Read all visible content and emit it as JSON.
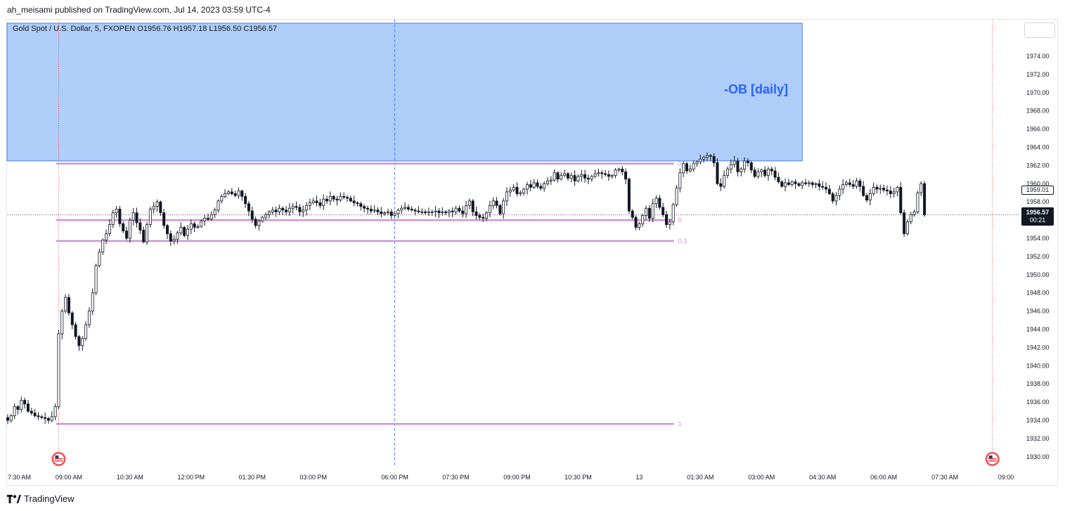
{
  "header": {
    "published": "ah_meisami published on TradingView.com, Jul 14, 2023 03:59 UTC-4"
  },
  "footer": {
    "brand": "TradingView"
  },
  "icons": {
    "brand_logo": "tradingview-logo-icon",
    "event_flags": "us-flag-icon"
  },
  "colors": {
    "order_block_fill": "#aecdf8",
    "order_block_border": "#2962ff",
    "order_block_label": "#2962ff",
    "fib_lines": "#ce93d8",
    "candle": "#131722",
    "dashed_vertical": "#2962ff",
    "red_vertical": "#e53935"
  },
  "chart_data": {
    "type": "candlestick",
    "symbol_line": "Gold Spot / U.S. Dollar, 5, FXOPEN  O1956.76  H1957.18  L1956.50  C1956.57",
    "ohlc_last": {
      "open": 1956.76,
      "high": 1957.18,
      "low": 1956.5,
      "close": 1956.57
    },
    "y_axis": {
      "range": [
        1928.5,
        1976
      ],
      "ticks": [
        "1930.00",
        "1932.00",
        "1934.00",
        "1936.00",
        "1938.00",
        "1940.00",
        "1942.00",
        "1944.00",
        "1946.00",
        "1948.00",
        "1950.00",
        "1952.00",
        "1954.00",
        "1956.00",
        "1958.00",
        "1960.00",
        "1962.00",
        "1964.00",
        "1966.00",
        "1968.00",
        "1970.00",
        "1972.00",
        "1974.00"
      ],
      "tick_values": [
        1930,
        1932,
        1934,
        1936,
        1938,
        1940,
        1942,
        1944,
        1946,
        1948,
        1950,
        1952,
        1954,
        1956,
        1958,
        1960,
        1962,
        1964,
        1966,
        1968,
        1970,
        1972,
        1974
      ]
    },
    "x_axis": {
      "ticks": [
        "7:30 AM",
        "09:00 AM",
        "10:30 AM",
        "12:00 PM",
        "01:30 PM",
        "03:00 PM",
        "06:00 PM",
        "07:30 PM",
        "09:00 PM",
        "10:30 PM",
        "13",
        "01:30 AM",
        "03:00 AM",
        "04:30 AM",
        "06:00 AM",
        "07:30 AM",
        "09:00"
      ],
      "tick_positions": [
        0,
        18,
        36,
        54,
        72,
        90,
        114,
        132,
        150,
        168,
        186,
        204,
        222,
        240,
        258,
        276,
        294
      ]
    },
    "order_block": {
      "label": "-OB [daily]",
      "price_top": 1978,
      "price_bottom": 1962.5,
      "bar_start": 0,
      "bar_end": 234
    },
    "fib_levels": [
      {
        "label": "0",
        "price": 1962.2
      },
      {
        "label": "0.",
        "price": 1956.0
      },
      {
        "label": "0.3",
        "price": 1953.7
      },
      {
        "label": "1",
        "price": 1933.6
      }
    ],
    "fib_bar_range": [
      14,
      196
    ],
    "price_labels": {
      "marker": "1959.01",
      "marker_value": 1959.01,
      "current": "1956.57",
      "countdown": "00:21"
    },
    "current_price": 1956.57,
    "event_markers_bar": [
      15,
      290
    ],
    "dashed_vertical_bar": 114,
    "closes": [
      1934.0,
      1934.5,
      1935.5,
      1935.2,
      1936.2,
      1935.8,
      1935.0,
      1934.8,
      1934.5,
      1934.4,
      1934.3,
      1934.2,
      1934.0,
      1934.4,
      1935.5,
      1943.5,
      1946.0,
      1947.5,
      1945.8,
      1944.5,
      1943.2,
      1942.2,
      1943.0,
      1944.5,
      1946.0,
      1948.0,
      1951.0,
      1952.5,
      1953.8,
      1954.5,
      1955.5,
      1956.8,
      1957.2,
      1955.6,
      1954.8,
      1954.0,
      1956.0,
      1956.8,
      1955.7,
      1954.9,
      1953.6,
      1955.5,
      1957.2,
      1957.5,
      1958.0,
      1956.8,
      1955.4,
      1954.5,
      1953.7,
      1953.9,
      1954.6,
      1955.2,
      1954.3,
      1955.0,
      1955.6,
      1955.2,
      1955.3,
      1955.9,
      1956.2,
      1956.1,
      1956.6,
      1957.1,
      1958.1,
      1958.6,
      1958.9,
      1959.1,
      1958.9,
      1958.7,
      1959.2,
      1958.6,
      1957.8,
      1957.0,
      1956.1,
      1955.4,
      1955.9,
      1956.3,
      1956.6,
      1956.9,
      1957.1,
      1956.9,
      1957.3,
      1957.1,
      1956.9,
      1957.3,
      1957.5,
      1957.4,
      1956.9,
      1957.1,
      1957.6,
      1957.9,
      1958.1,
      1957.9,
      1957.6,
      1958.3,
      1958.1,
      1958.6,
      1958.3,
      1958.2,
      1958.6,
      1958.5,
      1958.4,
      1958.1,
      1957.9,
      1957.8,
      1957.5,
      1957.3,
      1957.2,
      1957.0,
      1957.1,
      1956.9,
      1956.7,
      1956.8,
      1956.9,
      1956.5,
      1956.7,
      1957.1,
      1957.3,
      1957.4,
      1957.2,
      1957.1,
      1957.0,
      1956.9,
      1956.9,
      1956.8,
      1956.9,
      1956.9,
      1957.0,
      1956.8,
      1956.9,
      1956.8,
      1957.0,
      1956.9,
      1957.3,
      1957.0,
      1956.7,
      1957.6,
      1958.1,
      1956.9,
      1956.5,
      1956.3,
      1956.2,
      1956.8,
      1957.6,
      1958.1,
      1957.6,
      1956.7,
      1958.1,
      1959.1,
      1959.3,
      1959.6,
      1958.9,
      1959.0,
      1959.4,
      1959.9,
      1959.6,
      1960.1,
      1959.7,
      1959.5,
      1960.0,
      1960.3,
      1960.4,
      1961.2,
      1960.5,
      1960.9,
      1961.1,
      1960.6,
      1960.9,
      1960.3,
      1960.8,
      1961.0,
      1960.6,
      1960.5,
      1960.8,
      1961.1,
      1961.2,
      1961.1,
      1961.0,
      1960.8,
      1960.9,
      1961.5,
      1961.6,
      1961.3,
      1960.5,
      1957.0,
      1956.3,
      1955.2,
      1955.6,
      1956.5,
      1957.3,
      1956.2,
      1957.8,
      1958.4,
      1957.4,
      1956.6,
      1955.5,
      1955.8,
      1957.7,
      1959.5,
      1961.2,
      1962.2,
      1961.4,
      1961.6,
      1962.2,
      1962.4,
      1962.7,
      1962.9,
      1963.1,
      1963.0,
      1962.3,
      1960.0,
      1959.7,
      1960.9,
      1961.6,
      1962.1,
      1962.5,
      1961.3,
      1961.6,
      1962.5,
      1962.3,
      1961.5,
      1960.8,
      1961.3,
      1961.5,
      1960.9,
      1961.6,
      1961.4,
      1960.7,
      1960.2,
      1959.7,
      1960.1,
      1959.9,
      1960.2,
      1960.0,
      1959.8,
      1960.1,
      1960.0,
      1960.1,
      1959.9,
      1960.0,
      1959.7,
      1959.6,
      1959.4,
      1958.9,
      1958.1,
      1958.7,
      1959.4,
      1959.9,
      1960.1,
      1959.9,
      1959.7,
      1960.3,
      1959.7,
      1958.7,
      1958.2,
      1958.9,
      1959.6,
      1959.4,
      1959.5,
      1959.3,
      1959.2,
      1958.9,
      1959.1,
      1959.6,
      1956.8,
      1954.5,
      1955.8,
      1956.6,
      1956.9,
      1959.0,
      1960.0,
      1956.57
    ],
    "bar_count": 298
  }
}
